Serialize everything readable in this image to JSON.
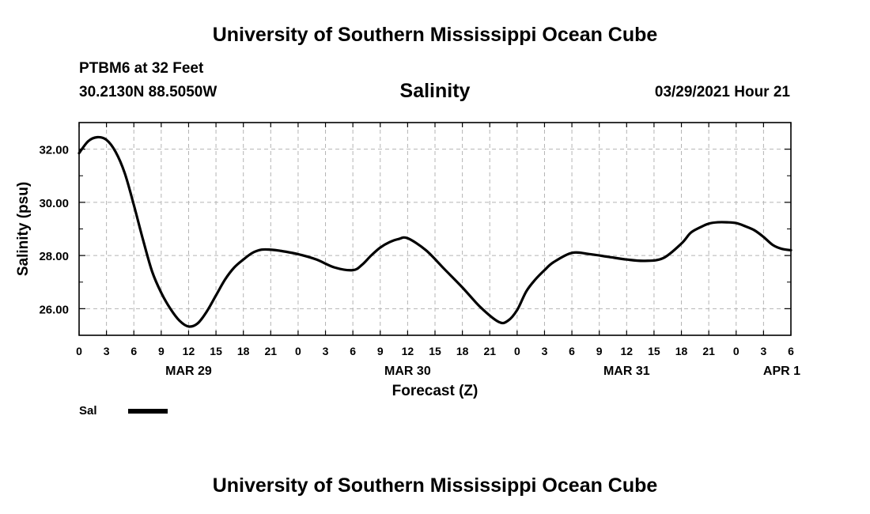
{
  "header": {
    "title_top": "University of Southern Mississippi Ocean Cube",
    "title_bottom": "University of Southern Mississippi Ocean Cube",
    "station": "PTBM6 at 32 Feet",
    "coords": "30.2130N  88.5050W",
    "timestamp": "03/29/2021 Hour 21"
  },
  "chart_data": {
    "type": "line",
    "title": "Salinity",
    "xlabel": "Forecast (Z)",
    "ylabel": "Salinity (psu)",
    "x_unit": "forecast hours from 00Z MAR 29",
    "xlim": [
      0,
      78
    ],
    "ylim": [
      25,
      33
    ],
    "yticks": [
      26,
      28,
      30,
      32
    ],
    "ytick_labels": [
      "26.00",
      "28.00",
      "30.00",
      "32.00"
    ],
    "ytick_minor": [
      25,
      27,
      29,
      31,
      33
    ],
    "xtick_step": 3,
    "xtick_labels": [
      "0",
      "3",
      "6",
      "9",
      "12",
      "15",
      "18",
      "21",
      "0",
      "3",
      "6",
      "9",
      "12",
      "15",
      "18",
      "21",
      "0",
      "3",
      "6",
      "9",
      "12",
      "15",
      "18",
      "21",
      "0",
      "3",
      "6"
    ],
    "date_labels": [
      {
        "hour": 12,
        "label": "MAR 29"
      },
      {
        "hour": 36,
        "label": "MAR 30"
      },
      {
        "hour": 60,
        "label": "MAR 31"
      },
      {
        "hour": 77,
        "label": "APR 1"
      }
    ],
    "grid": true,
    "legend": {
      "position": "bottom-left",
      "entries": [
        {
          "name": "Sal",
          "color": "#000000"
        }
      ]
    },
    "series": [
      {
        "name": "Sal",
        "color": "#000000",
        "x": [
          0,
          1,
          2,
          3,
          4,
          5,
          6,
          7,
          8,
          9,
          10,
          11,
          12,
          13,
          14,
          15,
          16,
          17,
          18,
          19,
          20,
          21,
          22,
          24,
          26,
          28,
          30,
          31,
          32,
          33,
          34,
          35,
          36,
          38,
          40,
          42,
          44,
          46,
          47,
          48,
          49,
          50,
          51,
          52,
          54,
          56,
          58,
          60,
          62,
          64,
          66,
          67,
          68,
          69,
          70,
          71,
          72,
          73,
          74,
          75,
          76,
          77,
          78
        ],
        "values": [
          31.85,
          32.3,
          32.45,
          32.35,
          31.9,
          31.1,
          29.9,
          28.6,
          27.4,
          26.6,
          26.0,
          25.55,
          25.33,
          25.45,
          25.9,
          26.5,
          27.1,
          27.55,
          27.85,
          28.1,
          28.22,
          28.22,
          28.18,
          28.05,
          27.85,
          27.55,
          27.45,
          27.65,
          28.0,
          28.3,
          28.5,
          28.62,
          28.65,
          28.2,
          27.5,
          26.8,
          26.05,
          25.5,
          25.55,
          25.95,
          26.65,
          27.1,
          27.45,
          27.75,
          28.1,
          28.05,
          27.95,
          27.85,
          27.8,
          27.9,
          28.45,
          28.85,
          29.05,
          29.2,
          29.25,
          29.25,
          29.22,
          29.1,
          28.95,
          28.7,
          28.4,
          28.25,
          28.2
        ]
      }
    ]
  }
}
